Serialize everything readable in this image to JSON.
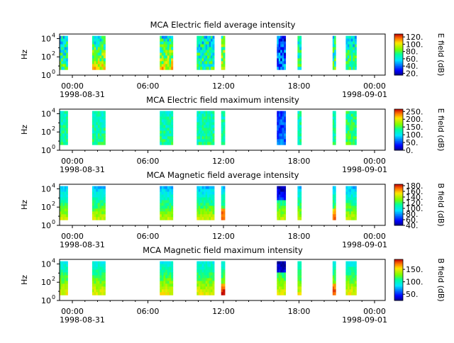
{
  "chart_data": [
    {
      "type": "heatmap",
      "title": "MCA  Electric field average intensity",
      "ylabel": "Hz",
      "colorbar_label": "E field (dB)",
      "colorbar_ticks": [
        "20.",
        "40.",
        "60.",
        "80.",
        "100.",
        "120."
      ],
      "colorbar_range": [
        15,
        128
      ],
      "y_ticks": [
        "10",
        "10",
        "10"
      ],
      "y_tick_exponents": [
        "0",
        "2",
        "4"
      ],
      "ylim_log10": [
        0,
        4.5
      ],
      "x_ticks": [
        "00:00",
        "06:00",
        "12:00",
        "18:00",
        "00:00"
      ],
      "x_date_left": "1998-08-31",
      "x_date_right": "1998-09-01",
      "style": "average-electric",
      "segments_hours": [
        [
          0.0,
          0.65
        ],
        [
          2.6,
          3.65
        ],
        [
          8.0,
          9.05
        ],
        [
          10.95,
          12.35
        ],
        [
          12.9,
          13.2
        ],
        [
          17.35,
          18.05
        ],
        [
          19.0,
          19.3
        ],
        [
          21.8,
          22.05
        ],
        [
          22.85,
          23.7
        ]
      ]
    },
    {
      "type": "heatmap",
      "title": "MCA  Electric field maximum intensity",
      "ylabel": "Hz",
      "colorbar_label": "E field (dB)",
      "colorbar_ticks": [
        "0.",
        "50.",
        "100.",
        "150.",
        "200.",
        "250."
      ],
      "colorbar_range": [
        0,
        265
      ],
      "y_ticks": [
        "10",
        "10",
        "10"
      ],
      "y_tick_exponents": [
        "0",
        "2",
        "4"
      ],
      "ylim_log10": [
        0,
        4.5
      ],
      "x_ticks": [
        "00:00",
        "06:00",
        "12:00",
        "18:00",
        "00:00"
      ],
      "x_date_left": "1998-08-31",
      "x_date_right": "1998-09-01",
      "style": "maximum-electric",
      "segments_hours": [
        [
          0.0,
          0.65
        ],
        [
          2.6,
          3.65
        ],
        [
          8.0,
          9.05
        ],
        [
          10.95,
          12.35
        ],
        [
          12.9,
          13.2
        ],
        [
          17.35,
          18.05
        ],
        [
          19.0,
          19.3
        ],
        [
          21.8,
          22.05
        ],
        [
          22.85,
          23.7
        ]
      ]
    },
    {
      "type": "heatmap",
      "title": "MCA  Magnetic field average intensity",
      "ylabel": "Hz",
      "colorbar_label": "B field (dB)",
      "colorbar_ticks": [
        "40.",
        "60.",
        "80.",
        "100.",
        "120.",
        "140.",
        "160.",
        "180."
      ],
      "colorbar_range": [
        40,
        185
      ],
      "y_ticks": [
        "10",
        "10",
        "10"
      ],
      "y_tick_exponents": [
        "0",
        "2",
        "4"
      ],
      "ylim_log10": [
        0,
        4.5
      ],
      "x_ticks": [
        "00:00",
        "06:00",
        "12:00",
        "18:00",
        "00:00"
      ],
      "x_date_left": "1998-08-31",
      "x_date_right": "1998-09-01",
      "style": "average-magnetic",
      "segments_hours": [
        [
          0.0,
          0.65
        ],
        [
          2.6,
          3.65
        ],
        [
          8.0,
          9.05
        ],
        [
          10.95,
          12.35
        ],
        [
          12.9,
          13.2
        ],
        [
          17.35,
          18.05
        ],
        [
          19.0,
          19.3
        ],
        [
          21.8,
          22.05
        ],
        [
          22.85,
          23.7
        ]
      ]
    },
    {
      "type": "heatmap",
      "title": "MCA  Magnetic field maximum intensity",
      "ylabel": "Hz",
      "colorbar_label": "B field (dB)",
      "colorbar_ticks": [
        "50.",
        "100.",
        "150."
      ],
      "colorbar_range": [
        25,
        190
      ],
      "y_ticks": [
        "10",
        "10",
        "10"
      ],
      "y_tick_exponents": [
        "0",
        "2",
        "4"
      ],
      "ylim_log10": [
        0,
        4.5
      ],
      "x_ticks": [
        "00:00",
        "06:00",
        "12:00",
        "18:00",
        "00:00"
      ],
      "x_date_left": "1998-08-31",
      "x_date_right": "1998-09-01",
      "style": "maximum-magnetic",
      "segments_hours": [
        [
          0.0,
          0.65
        ],
        [
          2.6,
          3.65
        ],
        [
          8.0,
          9.05
        ],
        [
          10.95,
          12.35
        ],
        [
          12.9,
          13.2
        ],
        [
          17.35,
          18.05
        ],
        [
          19.0,
          19.3
        ],
        [
          21.8,
          22.05
        ],
        [
          22.85,
          23.7
        ]
      ]
    }
  ]
}
